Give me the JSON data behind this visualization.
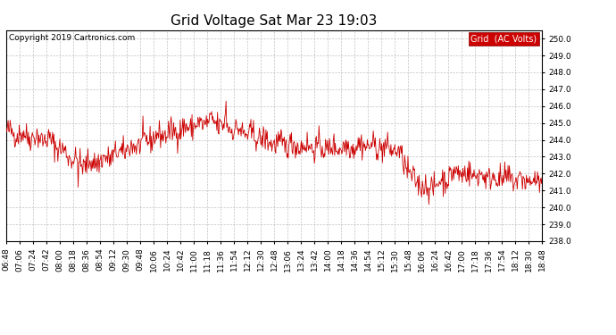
{
  "title": "Grid Voltage Sat Mar 23 19:03",
  "copyright": "Copyright 2019 Cartronics.com",
  "legend_label": "Grid  (AC Volts)",
  "legend_bg": "#cc0000",
  "legend_text_color": "#ffffff",
  "line_color": "#cc0000",
  "background_color": "#ffffff",
  "plot_bg_color": "#ffffff",
  "grid_color": "#bbbbbb",
  "ylim": [
    238.0,
    250.5
  ],
  "yticks": [
    238.0,
    239.0,
    240.0,
    241.0,
    242.0,
    243.0,
    244.0,
    245.0,
    246.0,
    247.0,
    248.0,
    249.0,
    250.0
  ],
  "xtick_labels": [
    "06:48",
    "07:06",
    "07:24",
    "07:42",
    "08:00",
    "08:18",
    "08:36",
    "08:54",
    "09:12",
    "09:30",
    "09:48",
    "10:06",
    "10:24",
    "10:42",
    "11:00",
    "11:18",
    "11:36",
    "11:54",
    "12:12",
    "12:30",
    "12:48",
    "13:06",
    "13:24",
    "13:42",
    "14:00",
    "14:18",
    "14:36",
    "14:54",
    "15:12",
    "15:30",
    "15:48",
    "16:06",
    "16:24",
    "16:42",
    "17:00",
    "17:18",
    "17:36",
    "17:54",
    "18:12",
    "18:30",
    "18:48"
  ],
  "title_fontsize": 11,
  "tick_fontsize": 6.5,
  "copyright_fontsize": 6.5,
  "legend_fontsize": 7.0
}
